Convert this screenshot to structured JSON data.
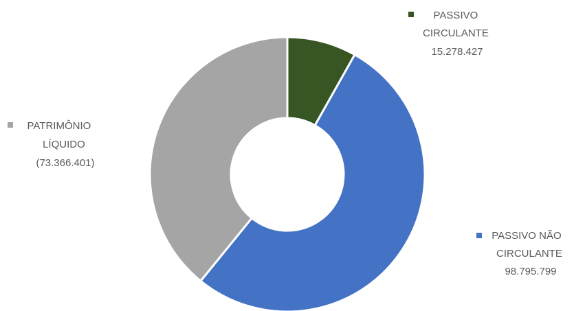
{
  "chart_data": {
    "type": "pie",
    "donut": true,
    "title": "",
    "categories": [
      "PASSIVO CIRCULANTE",
      "PASSIVO NÃO CIRCULANTE",
      "PATRIMÔNIO LÍQUIDO"
    ],
    "values": [
      15278427,
      98795799,
      73366401
    ],
    "value_labels": [
      "15.278.427",
      "98.795.799",
      "(73.366.401)"
    ],
    "colors": [
      "#375623",
      "#4472C4",
      "#A5A5A5"
    ],
    "labels": [
      {
        "lines": [
          "PASSIVO",
          "CIRCULANTE",
          "15.278.427"
        ]
      },
      {
        "lines": [
          "PASSIVO NÃO",
          "CIRCULANTE",
          "98.795.799"
        ]
      },
      {
        "lines": [
          "PATRIMÔNIO",
          "LÍQUIDO",
          "(73.366.401)"
        ]
      }
    ],
    "legend": false,
    "grid": false
  }
}
